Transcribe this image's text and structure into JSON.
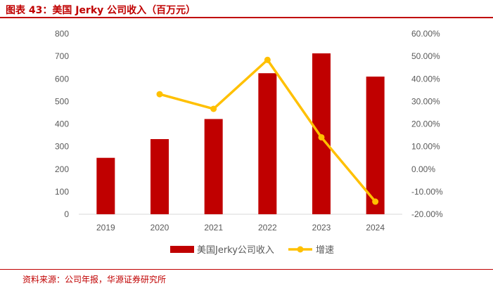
{
  "header": {
    "title": "图表 43：美国 Jerky 公司收入（百万元）"
  },
  "footer": {
    "source": "资料来源：公司年报，华源证券研究所"
  },
  "colors": {
    "bar": "#c00000",
    "line": "#ffc000",
    "accent": "#c00000"
  },
  "chart_data": {
    "type": "bar",
    "categories": [
      "2019",
      "2020",
      "2021",
      "2022",
      "2023",
      "2024"
    ],
    "series": [
      {
        "name": "美国Jerky公司收入",
        "type": "bar",
        "axis": "left",
        "values": [
          250,
          333,
          422,
          625,
          713,
          610
        ]
      },
      {
        "name": "增速",
        "type": "line",
        "axis": "right",
        "values": [
          null,
          0.332,
          0.267,
          0.484,
          0.141,
          -0.144
        ]
      }
    ],
    "y_left": {
      "min": 0,
      "max": 800,
      "ticks": [
        "0",
        "100",
        "200",
        "300",
        "400",
        "500",
        "600",
        "700",
        "800"
      ]
    },
    "y_right": {
      "min": -0.2,
      "max": 0.6,
      "ticks": [
        "-20.00%",
        "-10.00%",
        "0.00%",
        "10.00%",
        "20.00%",
        "30.00%",
        "40.00%",
        "50.00%",
        "60.00%"
      ]
    },
    "grid": false,
    "legend_position": "bottom"
  }
}
